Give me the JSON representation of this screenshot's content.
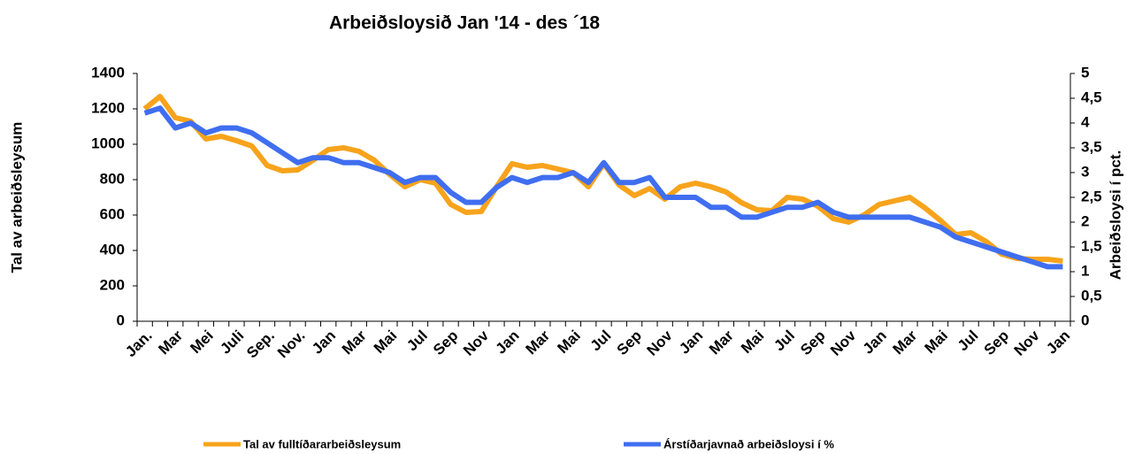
{
  "chart_data": {
    "type": "line",
    "title": "Arbeiðsloysið Jan '14 - des ´18",
    "y_label": "Tal av arbeiðsleysum",
    "y2_label": "Arbeiðsloysi í pct.",
    "categories": [
      "Jan.",
      null,
      "Mar",
      null,
      "Mei",
      null,
      "Juli",
      null,
      "Sep.",
      null,
      "Nov.",
      null,
      "Jan",
      null,
      "Mar",
      null,
      "Mai",
      null,
      "Jul",
      null,
      "Sep",
      null,
      "Nov",
      null,
      "Jan",
      null,
      "Mar",
      null,
      "Mai",
      null,
      "Jul",
      null,
      "Sep",
      null,
      "Nov",
      null,
      "Jan",
      null,
      "Mar",
      null,
      "Mai",
      null,
      "Jul",
      null,
      "Sep",
      null,
      "Nov",
      null,
      "Jan",
      null,
      "Mar",
      null,
      "Mai",
      null,
      "Jul",
      null,
      "Sep",
      null,
      "Nov",
      null,
      "Jan"
    ],
    "series": [
      {
        "name": "Tal av fulltíðararbeiðsleysum",
        "color": "#f7a31c",
        "axis": "y",
        "values": [
          1200,
          1270,
          1150,
          1130,
          1030,
          1045,
          1020,
          990,
          880,
          850,
          855,
          910,
          970,
          980,
          960,
          910,
          830,
          760,
          800,
          780,
          660,
          615,
          620,
          760,
          890,
          870,
          880,
          860,
          840,
          760,
          890,
          770,
          710,
          750,
          690,
          760,
          780,
          760,
          730,
          670,
          630,
          625,
          700,
          690,
          650,
          580,
          560,
          600,
          660,
          680,
          700,
          640,
          570,
          490,
          500,
          450,
          380,
          355,
          350,
          350,
          340
        ]
      },
      {
        "name": "Árstíðarjavnað arbeiðsloysi í %",
        "color": "#3f6ef0",
        "axis": "y2",
        "values": [
          4.2,
          4.3,
          3.9,
          4.0,
          3.8,
          3.9,
          3.9,
          3.8,
          3.6,
          3.4,
          3.2,
          3.3,
          3.3,
          3.2,
          3.2,
          3.1,
          3.0,
          2.8,
          2.9,
          2.9,
          2.6,
          2.4,
          2.4,
          2.7,
          2.9,
          2.8,
          2.9,
          2.9,
          3.0,
          2.8,
          3.2,
          2.8,
          2.8,
          2.9,
          2.5,
          2.5,
          2.5,
          2.3,
          2.3,
          2.1,
          2.1,
          2.2,
          2.3,
          2.3,
          2.4,
          2.2,
          2.1,
          2.1,
          2.1,
          2.1,
          2.1,
          2.0,
          1.9,
          1.7,
          1.6,
          1.5,
          1.4,
          1.3,
          1.2,
          1.1,
          1.1
        ]
      }
    ],
    "ylim": [
      0,
      1400
    ],
    "yticks": [
      0,
      200,
      400,
      600,
      800,
      1000,
      1200,
      1400
    ],
    "y2lim": [
      0,
      5
    ],
    "y2ticks": [
      0,
      {
        "value": 0.5,
        "label": "0,5"
      },
      1,
      {
        "value": 1.5,
        "label": "1,5"
      },
      2,
      {
        "value": 2.5,
        "label": "2,5"
      },
      3,
      {
        "value": 3.5,
        "label": "3,5"
      },
      4,
      {
        "value": 4.5,
        "label": "4,5"
      },
      5
    ],
    "legend": "bottom"
  }
}
